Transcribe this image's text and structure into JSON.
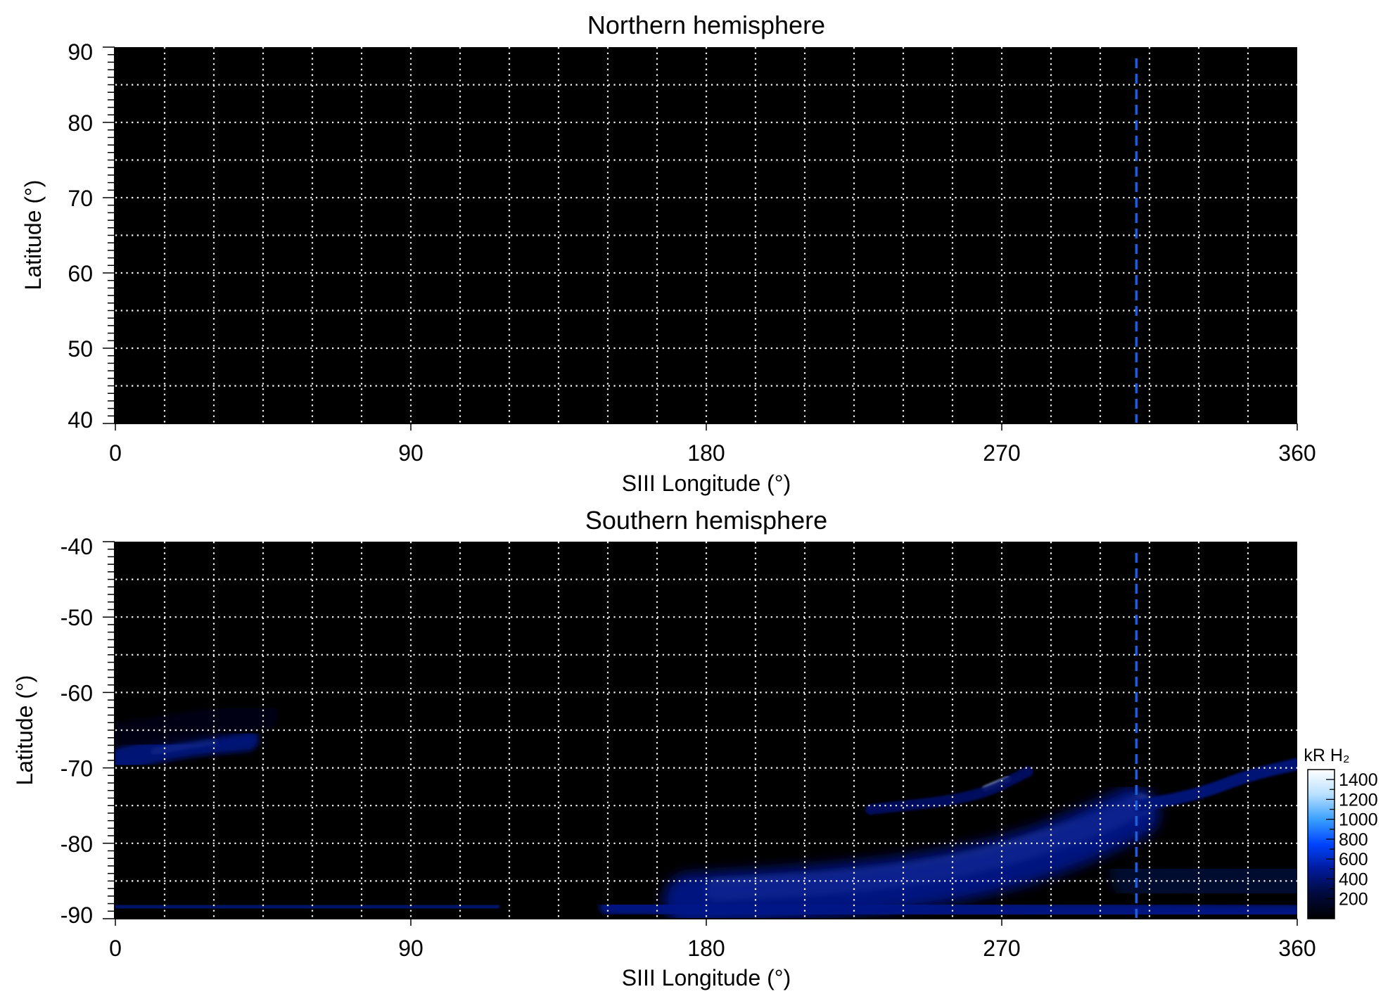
{
  "colors": {
    "background": "#000000",
    "grid": "#ffffff",
    "marker_line": "#1e5fd6",
    "colormap": [
      "#000000",
      "#000a3c",
      "#001a9a",
      "#0044ff",
      "#3aa0ff",
      "#b8e0ff",
      "#ffffff"
    ]
  },
  "chart_data": [
    {
      "type": "heatmap",
      "title": "Northern hemisphere",
      "xlabel": "SIII Longitude (°)",
      "ylabel": "Latitude (°)",
      "xlim": [
        0,
        360
      ],
      "ylim": [
        40,
        90
      ],
      "x_ticks": [
        "0",
        "90",
        "180",
        "270",
        "360"
      ],
      "x_tick_values": [
        0,
        90,
        180,
        270,
        360
      ],
      "y_ticks": [
        "40",
        "50",
        "60",
        "70",
        "80",
        "90"
      ],
      "y_tick_values": [
        40,
        50,
        60,
        70,
        80,
        90
      ],
      "grid": true,
      "grid_x_step_deg": 15,
      "grid_y_step_deg": 5,
      "marker_longitude": 311,
      "emission_regions": []
    },
    {
      "type": "heatmap",
      "title": "Southern hemisphere",
      "xlabel": "SIII Longitude (°)",
      "ylabel": "Latitude (°)",
      "xlim": [
        0,
        360
      ],
      "ylim": [
        -90,
        -40
      ],
      "x_ticks": [
        "0",
        "90",
        "180",
        "270",
        "360"
      ],
      "x_tick_values": [
        0,
        90,
        180,
        270,
        360
      ],
      "y_ticks": [
        "-90",
        "-80",
        "-70",
        "-60",
        "-50",
        "-40"
      ],
      "y_tick_values": [
        -90,
        -80,
        -70,
        -60,
        -50,
        -40
      ],
      "grid": true,
      "grid_x_step_deg": 15,
      "grid_y_step_deg": 5,
      "marker_longitude": 311,
      "colorbar": {
        "label": "kR H₂",
        "ticks": [
          "200",
          "400",
          "600",
          "800",
          "1000",
          "1200",
          "1400"
        ],
        "tick_values": [
          200,
          400,
          600,
          800,
          1000,
          1200,
          1400
        ],
        "range": [
          0,
          1500
        ]
      },
      "emission_regions": [
        {
          "name": "main-oval-arc",
          "points": [
            [
              183,
              -86.3
            ],
            [
              220,
              -85.5
            ],
            [
              255,
              -83.5
            ],
            [
              280,
              -80.5
            ],
            [
              300,
              -77.5
            ],
            [
              312,
              -75
            ]
          ],
          "width_deg": 2.8,
          "intensity": 1500
        },
        {
          "name": "main-oval-halo",
          "points": [
            [
              175,
              -87.5
            ],
            [
              215,
              -86.5
            ],
            [
              255,
              -84.5
            ],
            [
              285,
              -81
            ],
            [
              310,
              -76
            ]
          ],
          "width_deg": 7,
          "intensity": 450
        },
        {
          "name": "polar-arc",
          "points": [
            [
              265,
              -72.8
            ],
            [
              272,
              -71.5
            ]
          ],
          "width_deg": 0.8,
          "intensity": 1300
        },
        {
          "name": "polar-arc-halo",
          "points": [
            [
              230,
              -75.5
            ],
            [
              262,
              -74
            ],
            [
              278,
              -70.5
            ]
          ],
          "width_deg": 1.4,
          "intensity": 350
        },
        {
          "name": "dusk-spot-bright",
          "points": [
            [
              12,
              -67.8
            ],
            [
              22,
              -67
            ],
            [
              30,
              -66.5
            ]
          ],
          "width_deg": 1.0,
          "intensity": 1400
        },
        {
          "name": "dusk-spot-halo",
          "points": [
            [
              2,
              -68.8
            ],
            [
              20,
              -67
            ],
            [
              40,
              -66.2
            ]
          ],
          "width_deg": 3.2,
          "intensity": 420
        },
        {
          "name": "dusk-faint",
          "points": [
            [
              0,
              -66
            ],
            [
              30,
              -64
            ],
            [
              45,
              -63
            ]
          ],
          "width_deg": 4,
          "intensity": 90
        },
        {
          "name": "pole-band-left",
          "points": [
            [
              0,
              -88.5
            ],
            [
              60,
              -88.6
            ],
            [
              115,
              -88.3
            ]
          ],
          "width_deg": 1.8,
          "intensity": 380
        },
        {
          "name": "pole-band-right",
          "points": [
            [
              150,
              -88.4
            ],
            [
              220,
              -88.8
            ],
            [
              300,
              -89
            ],
            [
              360,
              -89.2
            ]
          ],
          "width_deg": 2.2,
          "intensity": 450
        },
        {
          "name": "right-tail",
          "points": [
            [
              312,
              -75
            ],
            [
              330,
              -73.5
            ],
            [
              345,
              -71
            ],
            [
              360,
              -69.5
            ]
          ],
          "width_deg": 1.6,
          "intensity": 420
        },
        {
          "name": "right-lower-diffuse",
          "points": [
            [
              312,
              -84
            ],
            [
              340,
              -85
            ],
            [
              360,
              -86
            ]
          ],
          "width_deg": 8,
          "intensity": 200
        }
      ]
    }
  ]
}
